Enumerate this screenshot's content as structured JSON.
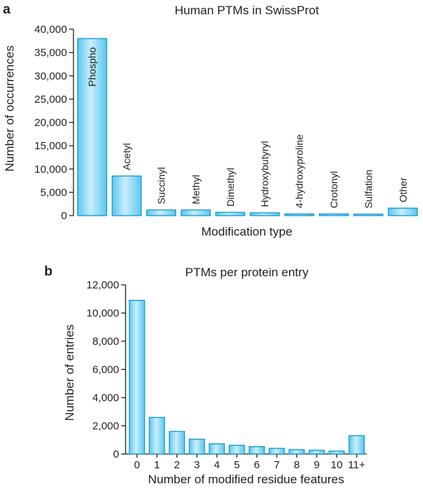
{
  "chart_data": [
    {
      "panel": "a",
      "type": "bar",
      "title": "Human PTMs in SwissProt",
      "xlabel": "Modification type",
      "ylabel": "Number of occurrences",
      "ylim": [
        0,
        40000
      ],
      "yticks": [
        "0",
        "5,000",
        "10,000",
        "15,000",
        "20,000",
        "25,000",
        "30,000",
        "35,000",
        "40,000"
      ],
      "categories": [
        "Phospho",
        "Acetyl",
        "Succinyl",
        "Methyl",
        "Dimethyl",
        "Hydroxybutyryl",
        "4-hydroxyproline",
        "Crotonyl",
        "Sulfation",
        "Other"
      ],
      "values": [
        38000,
        8500,
        1200,
        1200,
        700,
        600,
        350,
        350,
        300,
        1600
      ],
      "grid": false,
      "bar_color": "#6fd0f2"
    },
    {
      "panel": "b",
      "type": "bar",
      "title": "PTMs per protein entry",
      "xlabel": "Number of modified residue features",
      "ylabel": "Number of entries",
      "ylim": [
        0,
        12000
      ],
      "yticks": [
        "0",
        "2,000",
        "4,000",
        "6,000",
        "8,000",
        "10,000",
        "12,000"
      ],
      "categories": [
        "0",
        "1",
        "2",
        "3",
        "4",
        "5",
        "6",
        "7",
        "8",
        "9",
        "10",
        "11+"
      ],
      "values": [
        10900,
        2600,
        1600,
        1050,
        720,
        620,
        520,
        400,
        310,
        270,
        210,
        1300
      ],
      "grid": false,
      "bar_color": "#6fd0f2"
    }
  ]
}
